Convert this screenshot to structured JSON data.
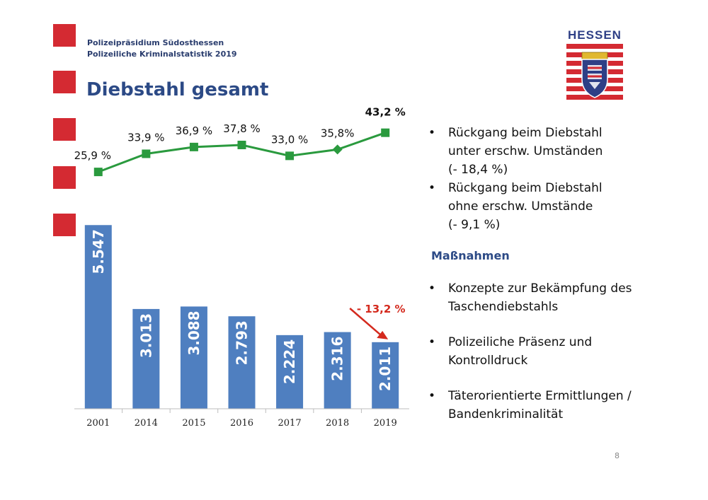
{
  "header": {
    "line1": "Polizeipräsidium Südosthessen",
    "line2": "Polizeiliche Kriminalstatistik 2019"
  },
  "title": "Diebstahl gesamt",
  "logo": {
    "text": "HESSEN",
    "stripe_color": "#d42a32",
    "shield_color": "#2e3f86"
  },
  "chart_data": {
    "type": "bar",
    "categories": [
      "2001",
      "2014",
      "2015",
      "2016",
      "2017",
      "2018",
      "2019"
    ],
    "values": [
      5547,
      3013,
      3088,
      2793,
      2224,
      2316,
      2011
    ],
    "value_labels": [
      "5.547",
      "3.013",
      "3.088",
      "2.793",
      "2.224",
      "2.316",
      "2.011"
    ],
    "ylim": [
      0,
      6300
    ],
    "bar_color": "#4f7fc0",
    "line_series": {
      "values": [
        25.9,
        33.9,
        36.9,
        37.8,
        33.0,
        35.8,
        43.2
      ],
      "labels": [
        "25,9 %",
        "33,9 %",
        "36,9 %",
        "37,8 %",
        "33,0 %",
        "35,8%",
        "43,2 %"
      ],
      "ylim": [
        20,
        50
      ],
      "color": "#2a9a3e"
    },
    "annotation": {
      "text": "- 13,2 %",
      "color": "#d42a1e"
    },
    "grid": false,
    "xlabel": "",
    "ylabel": ""
  },
  "bullets_top": [
    "Rückgang beim Diebstahl unter erschw. Umständen (- 18,4 %)",
    "Rückgang beim Diebstahl ohne erschw. Umstände (- 9,1 %)"
  ],
  "bullets_top_lines": [
    [
      "Rückgang beim Diebstahl",
      "unter erschw. Umständen",
      "(- 18,4 %)"
    ],
    [
      "Rückgang beim Diebstahl",
      "ohne erschw. Umstände",
      "(- 9,1 %)"
    ]
  ],
  "measures_heading": "Maßnahmen",
  "measures": [
    [
      "Konzepte zur Bekämpfung des",
      "Taschendiebstahls"
    ],
    [
      "Polizeiliche Präsenz und",
      "Kontrolldruck"
    ],
    [
      "Täterorientierte Ermittlungen /",
      "Bandenkriminalität"
    ]
  ],
  "bullet_glyph": "•",
  "page_number": "8"
}
